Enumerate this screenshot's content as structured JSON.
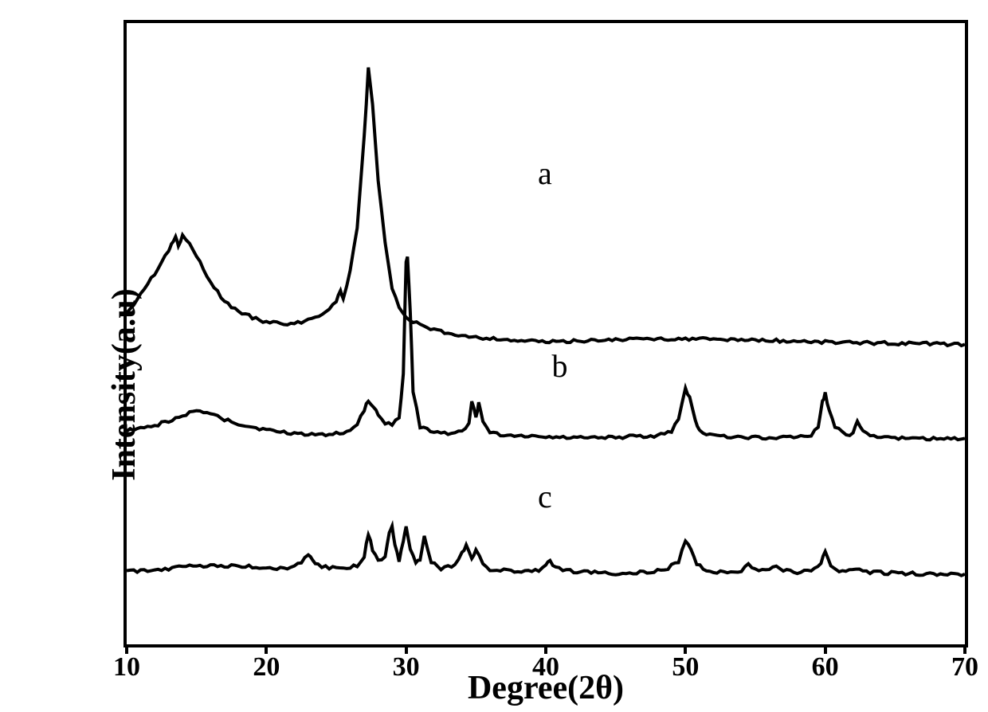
{
  "chart": {
    "type": "line",
    "background_color": "#ffffff",
    "border_color": "#000000",
    "border_width": 4,
    "line_color": "#000000",
    "line_width": 4,
    "xlabel": "Degree(2θ)",
    "ylabel": "Intensity(a.u)",
    "x_axis": {
      "min": 10,
      "max": 70,
      "ticks": [
        10,
        20,
        30,
        40,
        50,
        60,
        70
      ]
    },
    "axis_fontsize": 42,
    "tick_fontsize": 34,
    "series_label_fontsize": 40,
    "series": [
      {
        "label": "a",
        "label_pos": {
          "x2theta": 40,
          "y_pct_from_top": 25
        },
        "baseline_pct_from_top": 33,
        "data": [
          {
            "x": 10,
            "y": 105
          },
          {
            "x": 10.5,
            "y": 95
          },
          {
            "x": 11,
            "y": 82
          },
          {
            "x": 11.5,
            "y": 70
          },
          {
            "x": 12,
            "y": 58
          },
          {
            "x": 12.5,
            "y": 42
          },
          {
            "x": 13,
            "y": 28
          },
          {
            "x": 13.2,
            "y": 18
          },
          {
            "x": 13.5,
            "y": 12
          },
          {
            "x": 13.7,
            "y": 22
          },
          {
            "x": 14,
            "y": 10
          },
          {
            "x": 14.5,
            "y": 20
          },
          {
            "x": 15,
            "y": 35
          },
          {
            "x": 15.5,
            "y": 52
          },
          {
            "x": 16,
            "y": 68
          },
          {
            "x": 17,
            "y": 92
          },
          {
            "x": 18,
            "y": 105
          },
          {
            "x": 19,
            "y": 112
          },
          {
            "x": 20,
            "y": 118
          },
          {
            "x": 21,
            "y": 120
          },
          {
            "x": 22,
            "y": 120
          },
          {
            "x": 23,
            "y": 115
          },
          {
            "x": 24,
            "y": 108
          },
          {
            "x": 24.5,
            "y": 100
          },
          {
            "x": 25,
            "y": 92
          },
          {
            "x": 25.3,
            "y": 78
          },
          {
            "x": 25.5,
            "y": 90
          },
          {
            "x": 26,
            "y": 55
          },
          {
            "x": 26.5,
            "y": 0
          },
          {
            "x": 27,
            "y": -115
          },
          {
            "x": 27.3,
            "y": -200
          },
          {
            "x": 27.6,
            "y": -155
          },
          {
            "x": 28,
            "y": -60
          },
          {
            "x": 28.5,
            "y": 20
          },
          {
            "x": 29,
            "y": 75
          },
          {
            "x": 29.5,
            "y": 100
          },
          {
            "x": 30,
            "y": 112
          },
          {
            "x": 31,
            "y": 122
          },
          {
            "x": 32,
            "y": 128
          },
          {
            "x": 33,
            "y": 132
          },
          {
            "x": 35,
            "y": 137
          },
          {
            "x": 37,
            "y": 140
          },
          {
            "x": 40,
            "y": 143
          },
          {
            "x": 42,
            "y": 142
          },
          {
            "x": 45,
            "y": 140
          },
          {
            "x": 48,
            "y": 139
          },
          {
            "x": 50,
            "y": 139
          },
          {
            "x": 53,
            "y": 140
          },
          {
            "x": 56,
            "y": 141
          },
          {
            "x": 60,
            "y": 143
          },
          {
            "x": 63,
            "y": 144
          },
          {
            "x": 66,
            "y": 145
          },
          {
            "x": 70,
            "y": 146
          }
        ]
      },
      {
        "label": "b",
        "label_pos": {
          "x2theta": 41,
          "y_pct_from_top": 56
        },
        "baseline_pct_from_top": 63,
        "data": [
          {
            "x": 10,
            "y": 20
          },
          {
            "x": 11,
            "y": 18
          },
          {
            "x": 12,
            "y": 14
          },
          {
            "x": 13,
            "y": 8
          },
          {
            "x": 14,
            "y": 2
          },
          {
            "x": 14.5,
            "y": -2
          },
          {
            "x": 15,
            "y": -4
          },
          {
            "x": 15.5,
            "y": -3
          },
          {
            "x": 16,
            "y": 0
          },
          {
            "x": 17,
            "y": 6
          },
          {
            "x": 18,
            "y": 12
          },
          {
            "x": 19,
            "y": 16
          },
          {
            "x": 20,
            "y": 20
          },
          {
            "x": 22,
            "y": 24
          },
          {
            "x": 24,
            "y": 25
          },
          {
            "x": 25,
            "y": 24
          },
          {
            "x": 26,
            "y": 20
          },
          {
            "x": 26.5,
            "y": 12
          },
          {
            "x": 27,
            "y": -5
          },
          {
            "x": 27.3,
            "y": -18
          },
          {
            "x": 27.7,
            "y": -10
          },
          {
            "x": 28,
            "y": 0
          },
          {
            "x": 28.5,
            "y": 10
          },
          {
            "x": 29,
            "y": 12
          },
          {
            "x": 29.5,
            "y": 5
          },
          {
            "x": 29.8,
            "y": -50
          },
          {
            "x": 30,
            "y": -190
          },
          {
            "x": 30.1,
            "y": -200
          },
          {
            "x": 30.3,
            "y": -130
          },
          {
            "x": 30.5,
            "y": -30
          },
          {
            "x": 31,
            "y": 15
          },
          {
            "x": 32,
            "y": 22
          },
          {
            "x": 33,
            "y": 24
          },
          {
            "x": 34,
            "y": 22
          },
          {
            "x": 34.5,
            "y": 10
          },
          {
            "x": 34.7,
            "y": -18
          },
          {
            "x": 35,
            "y": 5
          },
          {
            "x": 35.2,
            "y": -15
          },
          {
            "x": 35.5,
            "y": 10
          },
          {
            "x": 36,
            "y": 22
          },
          {
            "x": 37,
            "y": 26
          },
          {
            "x": 40,
            "y": 28
          },
          {
            "x": 43,
            "y": 29
          },
          {
            "x": 46,
            "y": 28
          },
          {
            "x": 48,
            "y": 27
          },
          {
            "x": 49,
            "y": 22
          },
          {
            "x": 49.5,
            "y": 5
          },
          {
            "x": 50,
            "y": -32
          },
          {
            "x": 50.3,
            "y": -20
          },
          {
            "x": 50.7,
            "y": 8
          },
          {
            "x": 51,
            "y": 20
          },
          {
            "x": 52,
            "y": 27
          },
          {
            "x": 55,
            "y": 29
          },
          {
            "x": 58,
            "y": 29
          },
          {
            "x": 59,
            "y": 26
          },
          {
            "x": 59.5,
            "y": 15
          },
          {
            "x": 59.8,
            "y": -16
          },
          {
            "x": 60,
            "y": -26
          },
          {
            "x": 60.3,
            "y": -5
          },
          {
            "x": 60.7,
            "y": 15
          },
          {
            "x": 61.5,
            "y": 27
          },
          {
            "x": 62,
            "y": 22
          },
          {
            "x": 62.3,
            "y": 8
          },
          {
            "x": 62.7,
            "y": 22
          },
          {
            "x": 64,
            "y": 29
          },
          {
            "x": 67,
            "y": 30
          },
          {
            "x": 70,
            "y": 30
          }
        ]
      },
      {
        "label": "c",
        "label_pos": {
          "x2theta": 40,
          "y_pct_from_top": 77
        },
        "baseline_pct_from_top": 86,
        "data": [
          {
            "x": 10,
            "y": 18
          },
          {
            "x": 12,
            "y": 16
          },
          {
            "x": 14,
            "y": 12
          },
          {
            "x": 16,
            "y": 10
          },
          {
            "x": 18,
            "y": 11
          },
          {
            "x": 20,
            "y": 13
          },
          {
            "x": 21,
            "y": 14
          },
          {
            "x": 22,
            "y": 12
          },
          {
            "x": 22.5,
            "y": 6
          },
          {
            "x": 23,
            "y": -5
          },
          {
            "x": 23.3,
            "y": 3
          },
          {
            "x": 23.7,
            "y": 10
          },
          {
            "x": 24.5,
            "y": 13
          },
          {
            "x": 25.5,
            "y": 14
          },
          {
            "x": 26.5,
            "y": 10
          },
          {
            "x": 27,
            "y": -2
          },
          {
            "x": 27.3,
            "y": -30
          },
          {
            "x": 27.6,
            "y": -10
          },
          {
            "x": 28,
            "y": 5
          },
          {
            "x": 28.5,
            "y": 0
          },
          {
            "x": 28.8,
            "y": -32
          },
          {
            "x": 29,
            "y": -38
          },
          {
            "x": 29.2,
            "y": -15
          },
          {
            "x": 29.5,
            "y": 5
          },
          {
            "x": 29.8,
            "y": -20
          },
          {
            "x": 30,
            "y": -38
          },
          {
            "x": 30.3,
            "y": -12
          },
          {
            "x": 30.7,
            "y": 8
          },
          {
            "x": 31,
            "y": 3
          },
          {
            "x": 31.3,
            "y": -25
          },
          {
            "x": 31.8,
            "y": 5
          },
          {
            "x": 32.5,
            "y": 14
          },
          {
            "x": 33.5,
            "y": 10
          },
          {
            "x": 34,
            "y": -5
          },
          {
            "x": 34.3,
            "y": -15
          },
          {
            "x": 34.7,
            "y": 2
          },
          {
            "x": 35,
            "y": -10
          },
          {
            "x": 35.5,
            "y": 8
          },
          {
            "x": 36,
            "y": 15
          },
          {
            "x": 38,
            "y": 18
          },
          {
            "x": 39.5,
            "y": 17
          },
          {
            "x": 40,
            "y": 10
          },
          {
            "x": 40.3,
            "y": 4
          },
          {
            "x": 40.7,
            "y": 13
          },
          {
            "x": 42,
            "y": 18
          },
          {
            "x": 45,
            "y": 20
          },
          {
            "x": 47,
            "y": 19
          },
          {
            "x": 48.5,
            "y": 16
          },
          {
            "x": 49.5,
            "y": 5
          },
          {
            "x": 50,
            "y": -22
          },
          {
            "x": 50.4,
            "y": -10
          },
          {
            "x": 50.8,
            "y": 8
          },
          {
            "x": 51.5,
            "y": 17
          },
          {
            "x": 53,
            "y": 19
          },
          {
            "x": 54,
            "y": 17
          },
          {
            "x": 54.5,
            "y": 10
          },
          {
            "x": 55,
            "y": 16
          },
          {
            "x": 56,
            "y": 17
          },
          {
            "x": 56.5,
            "y": 10
          },
          {
            "x": 57,
            "y": 16
          },
          {
            "x": 58,
            "y": 19
          },
          {
            "x": 59,
            "y": 17
          },
          {
            "x": 59.7,
            "y": 8
          },
          {
            "x": 60,
            "y": -8
          },
          {
            "x": 60.4,
            "y": 10
          },
          {
            "x": 61,
            "y": 18
          },
          {
            "x": 62.2,
            "y": 13
          },
          {
            "x": 62.7,
            "y": 18
          },
          {
            "x": 65,
            "y": 20
          },
          {
            "x": 68,
            "y": 21
          },
          {
            "x": 70,
            "y": 21
          }
        ]
      }
    ]
  }
}
